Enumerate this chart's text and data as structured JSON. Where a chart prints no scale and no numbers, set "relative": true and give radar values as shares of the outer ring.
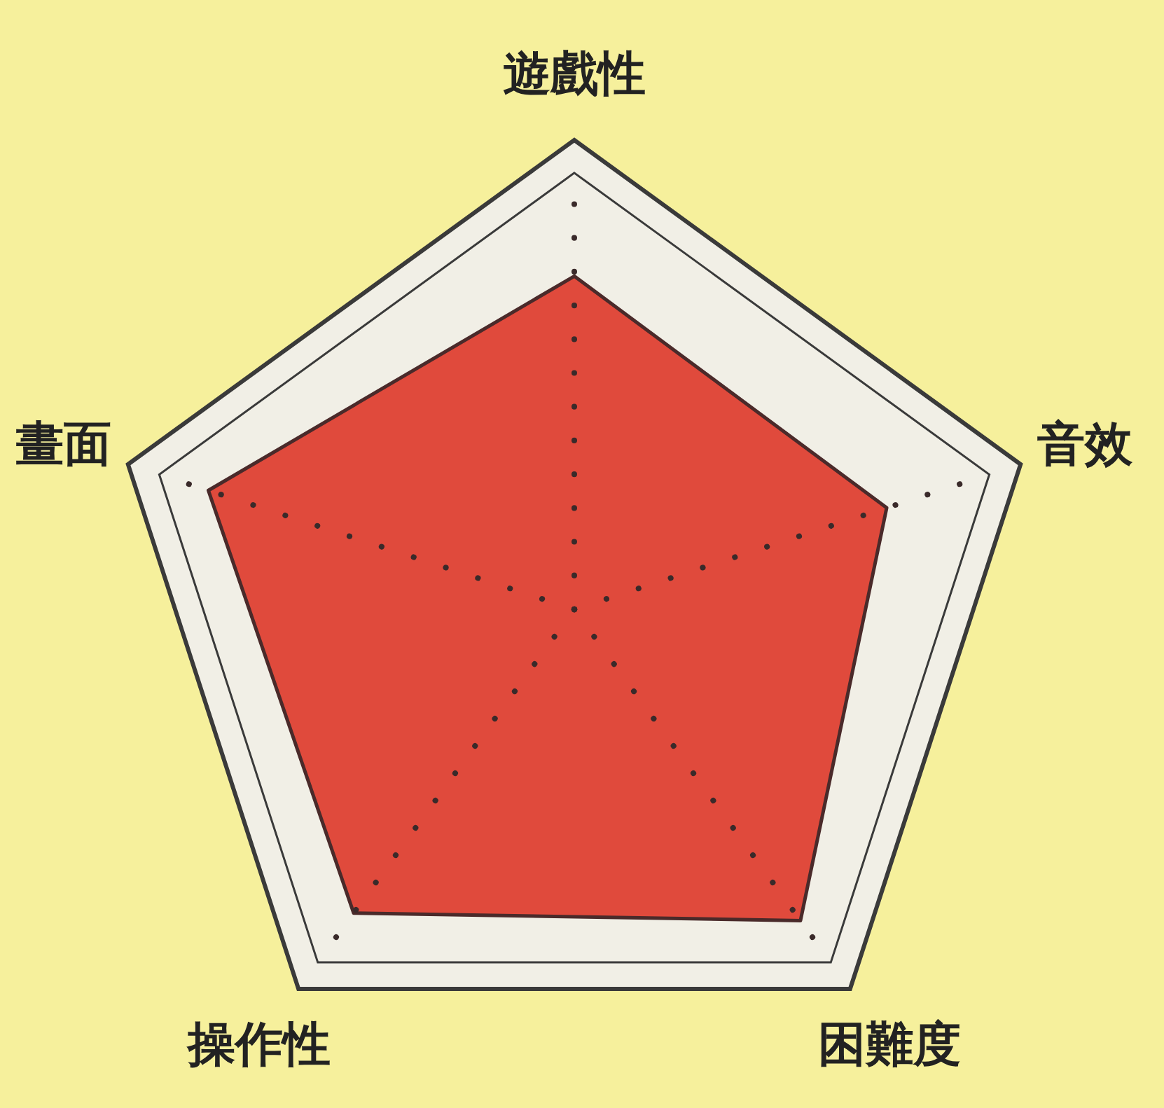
{
  "chart_data": {
    "type": "radar",
    "categories": [
      "遊戲性",
      "音效",
      "困難度",
      "操作性",
      "畫面"
    ],
    "relative": true,
    "series": [
      {
        "color": "#e04a3c",
        "values": [
          0.71,
          0.7,
          0.82,
          0.8,
          0.82
        ]
      }
    ]
  }
}
